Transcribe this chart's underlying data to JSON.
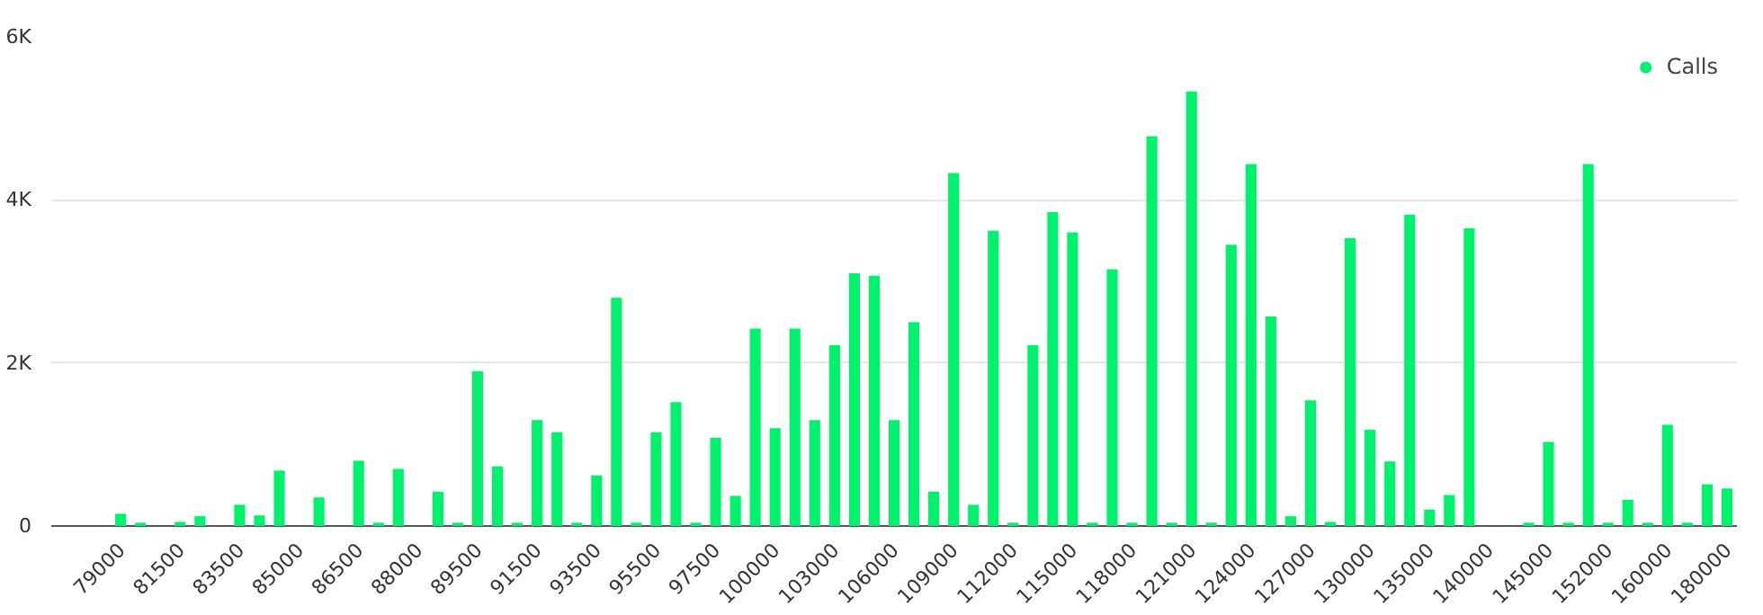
{
  "chart_data": {
    "type": "bar",
    "categories": [
      "79000",
      null,
      null,
      "81500",
      null,
      null,
      "83500",
      null,
      null,
      "85000",
      null,
      null,
      "86500",
      null,
      null,
      "88000",
      null,
      null,
      "89500",
      null,
      null,
      "91500",
      null,
      null,
      "93500",
      null,
      null,
      "95500",
      null,
      null,
      "97500",
      null,
      null,
      "100000",
      null,
      null,
      "103000",
      null,
      null,
      "106000",
      null,
      null,
      "109000",
      null,
      null,
      "112000",
      null,
      null,
      "115000",
      null,
      null,
      "118000",
      null,
      null,
      "121000",
      null,
      null,
      "124000",
      null,
      null,
      "127000",
      null,
      null,
      "130000",
      null,
      null,
      "135000",
      null,
      null,
      "140000",
      null,
      null,
      "145000",
      null,
      null,
      "152000",
      null,
      null,
      "160000",
      null,
      null,
      "180000"
    ],
    "series": [
      {
        "name": "Calls",
        "color": "#00f26d",
        "values": [
          150,
          40,
          null,
          50,
          120,
          null,
          260,
          130,
          680,
          null,
          350,
          null,
          800,
          40,
          700,
          null,
          420,
          40,
          1900,
          730,
          40,
          1300,
          1150,
          40,
          620,
          2800,
          40,
          1150,
          1520,
          40,
          1080,
          370,
          2420,
          1200,
          2420,
          1300,
          2220,
          3100,
          3070,
          1300,
          2500,
          420,
          4330,
          260,
          3620,
          40,
          2220,
          3850,
          3600,
          40,
          3150,
          40,
          4780,
          40,
          5330,
          40,
          3450,
          4440,
          2570,
          120,
          1540,
          50,
          3530,
          1180,
          790,
          3820,
          200,
          380,
          3650,
          null,
          null,
          40,
          1030,
          40,
          4440,
          40,
          320,
          40,
          1240,
          40,
          510,
          460
        ]
      }
    ],
    "ylim": [
      0,
      6000
    ],
    "yticks": [
      0,
      {
        "value": 2000,
        "label": "2K"
      },
      {
        "value": 4000,
        "label": "4K"
      },
      {
        "value": 6000,
        "label": "6K"
      }
    ],
    "grid": "y",
    "legend": "top right"
  }
}
